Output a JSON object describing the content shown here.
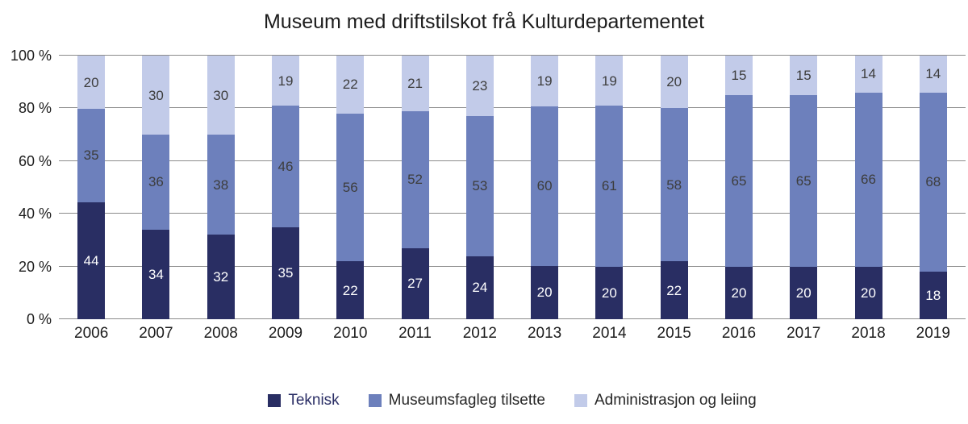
{
  "chart_data": {
    "type": "bar",
    "variant": "stacked-100-percent",
    "title": "Museum med driftstilskot frå Kulturdepartementet",
    "categories": [
      "2006",
      "2007",
      "2008",
      "2009",
      "2010",
      "2011",
      "2012",
      "2013",
      "2014",
      "2015",
      "2016",
      "2017",
      "2018",
      "2019"
    ],
    "series": [
      {
        "name": "Teknisk",
        "color": "#292e63",
        "label_color": "#ffffff",
        "legend_text_color": "#2b2f66",
        "values": [
          44,
          34,
          32,
          35,
          22,
          27,
          24,
          20,
          20,
          22,
          20,
          20,
          20,
          18
        ]
      },
      {
        "name": "Museumsfagleg tilsette",
        "color": "#6d80bc",
        "label_color": "#3d3d3d",
        "legend_text_color": "#262626",
        "values": [
          35,
          36,
          38,
          46,
          56,
          52,
          53,
          60,
          61,
          58,
          65,
          65,
          66,
          68
        ]
      },
      {
        "name": "Administrasjon og leiing",
        "color": "#c2cbe9",
        "label_color": "#3d3d3d",
        "legend_text_color": "#262626",
        "values": [
          20,
          30,
          30,
          19,
          22,
          21,
          23,
          19,
          19,
          20,
          15,
          15,
          14,
          14
        ]
      }
    ],
    "y_ticks": [
      {
        "value": 0,
        "label": "0 %"
      },
      {
        "value": 20,
        "label": "20 %"
      },
      {
        "value": 40,
        "label": "40 %"
      },
      {
        "value": 60,
        "label": "60 %"
      },
      {
        "value": 80,
        "label": "80 %"
      },
      {
        "value": 100,
        "label": "100 %"
      }
    ],
    "ylim": [
      0,
      100
    ],
    "grid": true,
    "gridline_color": "#8c8c8c",
    "legend_position": "bottom"
  }
}
